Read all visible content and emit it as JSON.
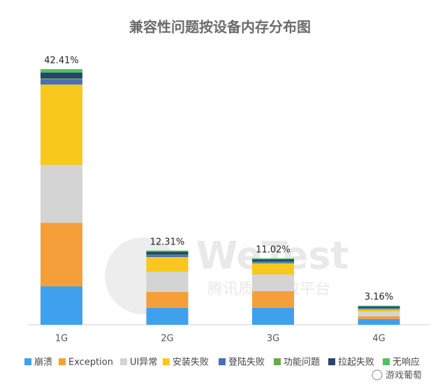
{
  "chart_data": {
    "type": "stacked_bar",
    "title": "兼容性问题按设备内存分布图",
    "categories": [
      "1G",
      "2G",
      "3G",
      "4G"
    ],
    "series": [
      {
        "name": "崩溃",
        "color": "#3fa0ee",
        "values": [
          6.37,
          2.78,
          2.78,
          0.93
        ]
      },
      {
        "name": "Exception",
        "color": "#f59f3b",
        "values": [
          10.54,
          2.66,
          2.78,
          0.46
        ]
      },
      {
        "name": "UI异常",
        "color": "#d4d4d4",
        "values": [
          9.62,
          3.36,
          2.78,
          0.81
        ]
      },
      {
        "name": "安装失败",
        "color": "#f8c81c",
        "values": [
          13.33,
          2.43,
          1.85,
          0.35
        ]
      },
      {
        "name": "登陆失败",
        "color": "#4a6fb8",
        "values": [
          0.9,
          0.3,
          0.2,
          0.15
        ]
      },
      {
        "name": "功能问题",
        "color": "#6aab45",
        "values": [
          0.1,
          0.1,
          0.08,
          0.05
        ]
      },
      {
        "name": "拉起失败",
        "color": "#27446c",
        "values": [
          1.0,
          0.5,
          0.4,
          0.3
        ]
      },
      {
        "name": "无响应",
        "color": "#4cc462",
        "values": [
          0.55,
          0.18,
          0.15,
          0.11
        ]
      }
    ],
    "totals": [
      42.41,
      12.31,
      11.02,
      3.16
    ],
    "total_labels": [
      "42.41%",
      "12.31%",
      "11.02%",
      "3.16%"
    ],
    "watermark": [
      "WeTest",
      "腾讯质量开放平台"
    ],
    "credit": "游戏葡萄"
  }
}
